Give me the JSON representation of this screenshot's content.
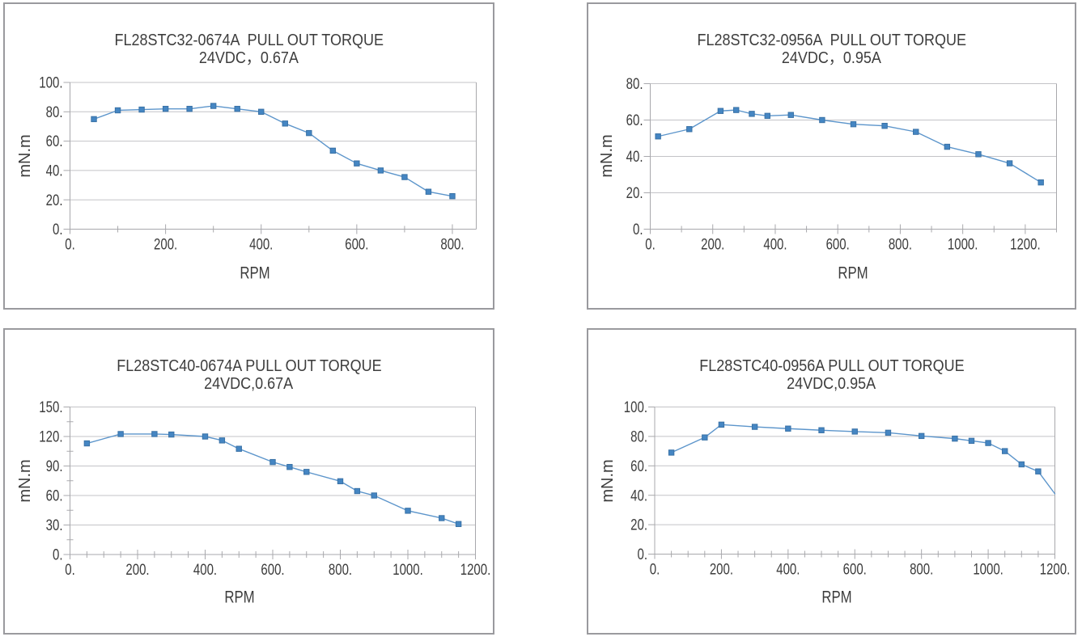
{
  "page": {
    "background": "#ffffff",
    "description": "Four Excel-style pull-out torque line charts arranged in a 2x2 grid"
  },
  "colors": {
    "panel_border": "#9a9a9e",
    "gridline": "#c3c3c7",
    "axis": "#a8a8ac",
    "text": "#3d3d3d",
    "series_line": "#5c95cb",
    "marker_fill": "#4586c3",
    "marker_border": "#3a72a6"
  },
  "chart_data": [
    {
      "type": "line",
      "title": "FL28STC32-0674A  PULL OUT TORQUE",
      "subtitle": "24VDC，0.67A",
      "xlabel": "RPM",
      "ylabel": "mN.m",
      "xlim": [
        0,
        850
      ],
      "ylim": [
        0,
        100
      ],
      "x_major_step": 200,
      "x_minor_step": 100,
      "x_tick_labels": [
        "0.",
        "200.",
        "400.",
        "600.",
        "800."
      ],
      "y_major_step": 20,
      "y_minor_step": 0,
      "y_tick_labels": [
        "0.",
        "20.",
        "40.",
        "60.",
        "80.",
        "100."
      ],
      "grid": "horizontal",
      "legend": "none",
      "series": [
        {
          "name": "pull out torque",
          "marker": "square",
          "marker_on_last_point": true,
          "x": [
            50,
            100,
            150,
            200,
            250,
            300,
            350,
            400,
            450,
            500,
            550,
            600,
            650,
            700,
            750,
            800
          ],
          "y": [
            75,
            81,
            81.5,
            82,
            82,
            84,
            82,
            80,
            72,
            65.5,
            53.5,
            44.8,
            40,
            35.5,
            25.5,
            22.5
          ]
        }
      ]
    },
    {
      "type": "line",
      "title": "FL28STC32-0956A  PULL OUT TORQUE",
      "subtitle": "24VDC，0.95A",
      "xlabel": "RPM",
      "ylabel": "mN.m",
      "xlim": [
        0,
        1300
      ],
      "ylim": [
        0,
        80
      ],
      "x_major_step": 200,
      "x_minor_step": 100,
      "x_tick_labels": [
        "0.",
        "200.",
        "400.",
        "600.",
        "800.",
        "1000.",
        "1200."
      ],
      "y_major_step": 20,
      "y_minor_step": 0,
      "y_tick_labels": [
        "0.",
        "20.",
        "40.",
        "60.",
        "80."
      ],
      "grid": "horizontal",
      "legend": "none",
      "series": [
        {
          "name": "pull out torque",
          "marker": "square",
          "marker_on_last_point": true,
          "x": [
            25,
            125,
            225,
            275,
            325,
            375,
            450,
            550,
            650,
            750,
            850,
            950,
            1050,
            1150,
            1250
          ],
          "y": [
            51,
            55,
            65,
            65.5,
            63.4,
            62.3,
            62.8,
            60,
            57.7,
            56.8,
            53.5,
            45.3,
            41.2,
            36.2,
            25.7
          ]
        }
      ]
    },
    {
      "type": "line",
      "title": "FL28STC40-0674A PULL OUT TORQUE",
      "subtitle": "24VDC,0.67A",
      "xlabel": "RPM",
      "ylabel": "mN.m",
      "xlim": [
        0,
        1200
      ],
      "ylim": [
        0,
        150
      ],
      "x_major_step": 200,
      "x_minor_step": 50,
      "x_tick_labels": [
        "0.",
        "200.",
        "400.",
        "600.",
        "800.",
        "1000.",
        "1200."
      ],
      "y_major_step": 30,
      "y_minor_step": 15,
      "y_tick_labels": [
        "0.",
        "30.",
        "60.",
        "90.",
        "120.",
        "150."
      ],
      "grid": "horizontal",
      "legend": "none",
      "series": [
        {
          "name": "pull out torque",
          "marker": "square",
          "marker_on_last_point": true,
          "x": [
            50,
            150,
            250,
            300,
            400,
            450,
            500,
            600,
            650,
            700,
            800,
            850,
            900,
            1000,
            1100,
            1150
          ],
          "y": [
            113,
            122.5,
            122.5,
            122,
            120,
            116,
            107.5,
            94,
            89,
            84,
            74.5,
            64.5,
            60,
            44.5,
            37,
            31
          ]
        }
      ]
    },
    {
      "type": "line",
      "title": "FL28STC40-0956A PULL OUT TORQUE",
      "subtitle": "24VDC,0.95A",
      "xlabel": "RPM",
      "ylabel": "mN.m",
      "xlim": [
        0,
        1200
      ],
      "ylim": [
        0,
        100
      ],
      "x_major_step": 200,
      "x_minor_step": 50,
      "x_tick_labels": [
        "0.",
        "200.",
        "400.",
        "600.",
        "800.",
        "1000.",
        "1200."
      ],
      "y_major_step": 20,
      "y_minor_step": 0,
      "y_tick_labels": [
        "0.",
        "20.",
        "40.",
        "60.",
        "80.",
        "100."
      ],
      "grid": "horizontal",
      "legend": "none",
      "series": [
        {
          "name": "pull out torque",
          "marker": "square",
          "marker_on_last_point": false,
          "x": [
            50,
            150,
            200,
            300,
            400,
            500,
            600,
            700,
            800,
            900,
            950,
            1000,
            1050,
            1100,
            1150,
            1200
          ],
          "y": [
            69,
            79.3,
            88,
            86.5,
            85.3,
            84.2,
            83.3,
            82.5,
            80.3,
            78.5,
            77,
            75.5,
            70,
            61,
            56.2,
            41
          ]
        }
      ]
    }
  ]
}
